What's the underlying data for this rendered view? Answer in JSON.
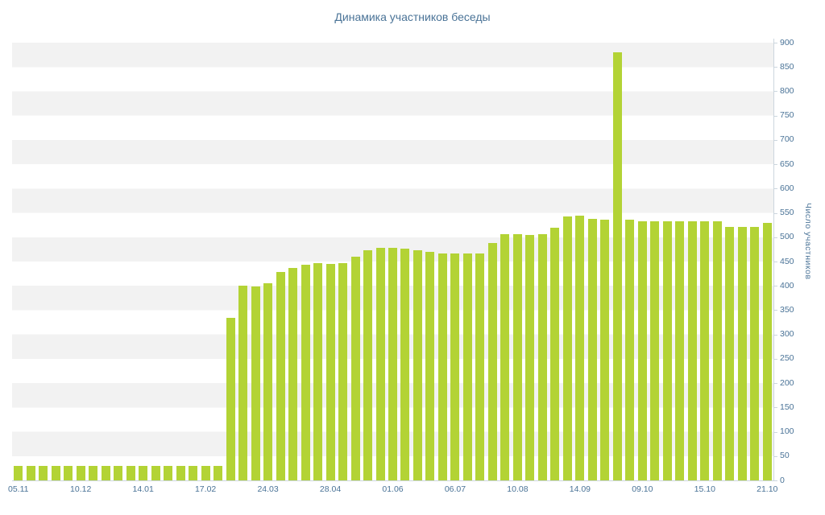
{
  "page_title": "Динамика участников беседы",
  "chart_data": {
    "type": "bar",
    "title": "Динамика участников беседы",
    "xlabel": "",
    "ylabel": "Число участников",
    "ylim": [
      0,
      900
    ],
    "ytick_step": 50,
    "yticks": [
      0,
      50,
      100,
      150,
      200,
      250,
      300,
      350,
      400,
      450,
      500,
      550,
      600,
      650,
      700,
      750,
      800,
      850,
      900
    ],
    "x_tick_labels": [
      "05.11",
      "10.12",
      "14.01",
      "17.02",
      "24.03",
      "28.04",
      "01.06",
      "06.07",
      "10.08",
      "14.09",
      "09.10",
      "15.10",
      "21.10"
    ],
    "x_tick_positions": [
      0,
      5,
      10,
      15,
      20,
      25,
      30,
      35,
      40,
      45,
      50,
      55,
      60
    ],
    "grid": "alternating-horizontal-bands",
    "legend": "none",
    "values": [
      30,
      30,
      30,
      30,
      30,
      30,
      30,
      30,
      30,
      30,
      30,
      30,
      30,
      30,
      30,
      30,
      30,
      335,
      400,
      398,
      406,
      428,
      437,
      444,
      446,
      445,
      447,
      460,
      474,
      478,
      478,
      477,
      474,
      470,
      467,
      467,
      467,
      467,
      488,
      506,
      507,
      505,
      507,
      520,
      543,
      545,
      538,
      536,
      880,
      536,
      533,
      533,
      533,
      533,
      533,
      533,
      533,
      521,
      521,
      521,
      530
    ],
    "colors": {
      "bar": "#b3d335",
      "band": "#f2f2f2",
      "plot_background": "#ffffff",
      "text": "#4a7397",
      "axis": "#ccd6de"
    }
  }
}
